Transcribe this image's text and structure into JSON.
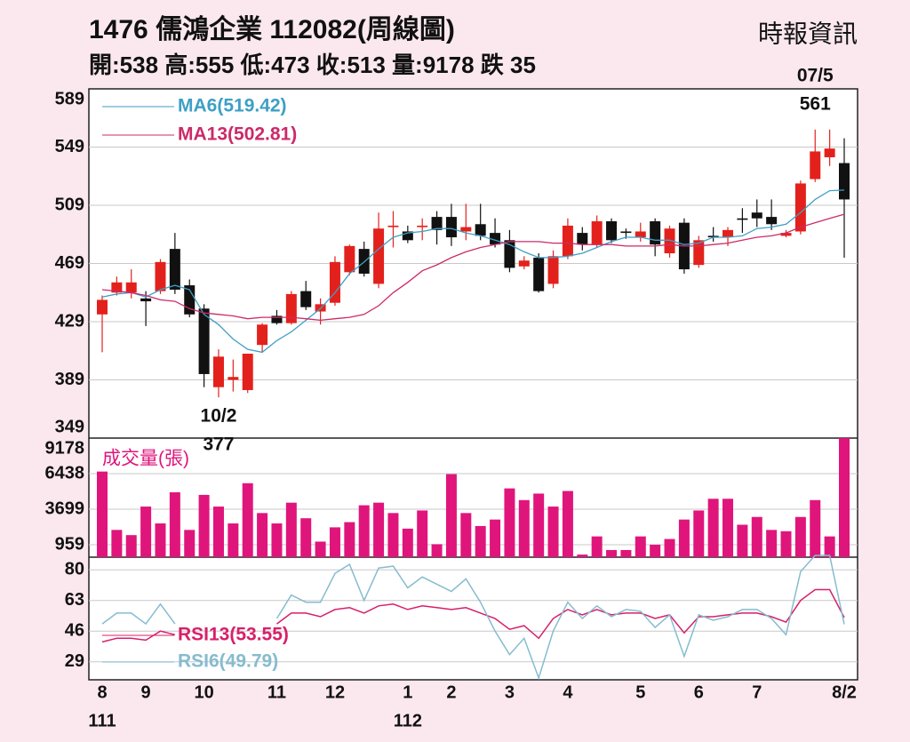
{
  "chart_data": [
    {
      "type": "candlestick",
      "title": "1476  儒鴻企業 112082(周線圖)",
      "subtitle": "開:538 高:555 低:473 收:513 量:9178 跌 35",
      "source": "時報資訊",
      "categories": [
        "8",
        null,
        null,
        "9",
        null,
        null,
        null,
        "10",
        null,
        null,
        null,
        null,
        "11",
        null,
        null,
        null,
        "12",
        null,
        null,
        null,
        null,
        "1",
        null,
        null,
        "2",
        null,
        null,
        null,
        "3",
        null,
        null,
        null,
        "4",
        null,
        null,
        null,
        null,
        "5",
        null,
        null,
        null,
        "6",
        null,
        null,
        null,
        "7",
        null,
        null,
        null,
        null,
        null,
        "8/2"
      ],
      "years": [
        "111",
        null,
        null,
        null,
        null,
        null,
        null,
        null,
        null,
        null,
        null,
        null,
        null,
        null,
        null,
        null,
        null,
        null,
        null,
        null,
        null,
        "112",
        null,
        null,
        null,
        null,
        null,
        null,
        null,
        null,
        null,
        null,
        null,
        null,
        null,
        null,
        null,
        null,
        null,
        null,
        null,
        null,
        null,
        null,
        null,
        null,
        null,
        null,
        null,
        null,
        null,
        null
      ],
      "open": [
        434,
        449,
        449,
        445,
        450,
        479,
        454,
        438,
        384,
        389,
        382,
        413,
        433,
        428,
        450,
        436,
        442,
        463,
        479,
        455,
        494,
        491,
        494,
        501,
        501,
        491,
        496,
        490,
        485,
        467,
        473,
        455,
        474,
        490,
        482,
        498,
        491,
        487,
        498,
        476,
        497,
        468,
        488,
        487,
        500,
        504,
        501,
        488,
        491,
        527,
        542,
        538
      ],
      "high": [
        447,
        460,
        465,
        450,
        472,
        490,
        458,
        441,
        410,
        403,
        407,
        428,
        437,
        450,
        457,
        445,
        474,
        482,
        484,
        504,
        505,
        495,
        500,
        505,
        510,
        510,
        510,
        500,
        492,
        474,
        476,
        478,
        500,
        494,
        502,
        500,
        493,
        497,
        500,
        495,
        500,
        488,
        494,
        494,
        507,
        513,
        513,
        492,
        526,
        561,
        561,
        555
      ],
      "low": [
        408,
        447,
        445,
        426,
        448,
        448,
        432,
        384,
        377,
        381,
        380,
        408,
        427,
        427,
        437,
        427,
        440,
        461,
        460,
        452,
        480,
        483,
        485,
        482,
        481,
        485,
        485,
        480,
        463,
        465,
        449,
        452,
        472,
        478,
        480,
        483,
        486,
        484,
        474,
        473,
        462,
        466,
        484,
        481,
        490,
        494,
        492,
        487,
        489,
        525,
        536,
        473
      ],
      "close": [
        444,
        456,
        456,
        443,
        470,
        451,
        434,
        393,
        405,
        391,
        407,
        427,
        428,
        448,
        439,
        441,
        470,
        481,
        462,
        493,
        495,
        485,
        495,
        492,
        487,
        494,
        488,
        482,
        466,
        471,
        450,
        474,
        495,
        482,
        498,
        485,
        490,
        491,
        482,
        493,
        465,
        485,
        487,
        492,
        499,
        500,
        496,
        490,
        524,
        546,
        548,
        513
      ],
      "up_color": "#e3211c",
      "down_color": "#111111",
      "series": [
        {
          "name": "MA6(519.42)",
          "color": "#3e9fc6",
          "values": [
            446,
            448,
            449,
            446,
            451,
            454,
            451,
            434,
            427,
            417,
            410,
            408,
            416,
            422,
            430,
            438,
            449,
            462,
            470,
            479,
            487,
            490,
            491,
            493,
            493,
            490,
            488,
            485,
            482,
            477,
            473,
            473,
            474,
            476,
            480,
            484,
            487,
            487,
            485,
            485,
            482,
            483,
            487,
            487,
            488,
            493,
            494,
            496,
            504,
            513,
            519,
            519.42
          ]
        },
        {
          "name": "MA13(502.81)",
          "color": "#cc2a68",
          "values": [
            451,
            450,
            449,
            447,
            444,
            443,
            438,
            435,
            434,
            433,
            431,
            432,
            432,
            432,
            431,
            430,
            431,
            432,
            434,
            440,
            449,
            456,
            464,
            468,
            473,
            477,
            480,
            482,
            484,
            484,
            484,
            483,
            483,
            482,
            482,
            482,
            481,
            481,
            481,
            482,
            481,
            481,
            482,
            483,
            485,
            487,
            488,
            490,
            494,
            497,
            500,
            502.81
          ]
        }
      ],
      "ylim": [
        349,
        589
      ],
      "yticks": [
        349,
        389,
        429,
        469,
        509,
        549,
        589
      ],
      "grid": true,
      "high_label": {
        "date": "07/5",
        "value": 561
      },
      "low_label": {
        "date": "10/2",
        "value": 377
      }
    },
    {
      "type": "bar",
      "title": "成交量(張)",
      "color": "#e0157c",
      "values": [
        6600,
        2100,
        1700,
        3900,
        2600,
        5000,
        2100,
        4800,
        3900,
        2600,
        5700,
        3400,
        2600,
        4200,
        3000,
        1200,
        2300,
        2700,
        4000,
        4200,
        3400,
        2200,
        3600,
        1000,
        6400,
        3400,
        2400,
        2900,
        5300,
        4400,
        4900,
        3900,
        5100,
        200,
        1600,
        550,
        550,
        1600,
        960,
        1400,
        2900,
        3600,
        4500,
        4500,
        2500,
        3100,
        2100,
        2000,
        3100,
        4400,
        1600,
        9178
      ],
      "ylim": [
        0,
        9178
      ],
      "yticks": [
        959,
        3699,
        6438,
        9178
      ],
      "grid": true
    },
    {
      "type": "line",
      "series": [
        {
          "name": "RSI13(53.55)",
          "color": "#d81f6a",
          "values": [
            40,
            42,
            42,
            41,
            46,
            44,
            null,
            null,
            null,
            null,
            null,
            null,
            50,
            56,
            56,
            54,
            58,
            59,
            56,
            60,
            61,
            58,
            60,
            59,
            58,
            59,
            56,
            53,
            47,
            49,
            42,
            53,
            58,
            55,
            58,
            55,
            56,
            56,
            53,
            55,
            45,
            54,
            54,
            55,
            56,
            56,
            54,
            51,
            63,
            69,
            69,
            53.55
          ]
        },
        {
          "name": "RSI6(49.79)",
          "color": "#86bccf",
          "values": [
            50,
            56,
            56,
            50,
            61,
            50,
            null,
            null,
            null,
            null,
            null,
            null,
            53,
            66,
            62,
            62,
            78,
            83,
            63,
            81,
            82,
            70,
            76,
            72,
            68,
            75,
            62,
            46,
            33,
            42,
            20,
            46,
            62,
            53,
            60,
            54,
            58,
            57,
            48,
            55,
            32,
            55,
            52,
            54,
            58,
            58,
            53,
            44,
            79,
            88,
            88,
            49.79
          ]
        }
      ],
      "ylim": [
        19,
        87
      ],
      "yticks": [
        29,
        46,
        63,
        80
      ],
      "grid": true
    }
  ]
}
